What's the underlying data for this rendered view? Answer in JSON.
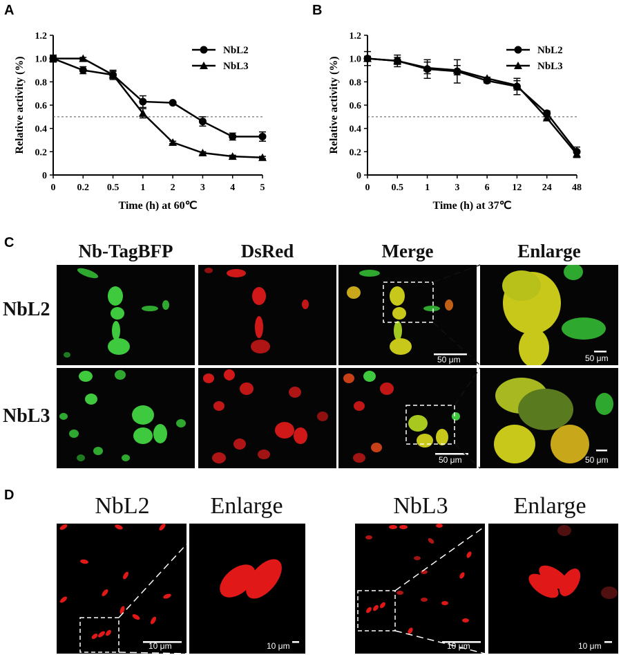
{
  "panels": {
    "a": "A",
    "b": "B",
    "c": "C",
    "d": "D"
  },
  "chart_data": [
    {
      "type": "line",
      "xlabel": "Time (h) at 60℃",
      "ylabel": "Relative activity (%)",
      "x": [
        "0",
        "0.2",
        "0.5",
        "1",
        "2",
        "3",
        "4",
        "5"
      ],
      "ylim": [
        0,
        1.2
      ],
      "yticks": [
        "0",
        "0.2",
        "0.4",
        "0.6",
        "0.8",
        "1.0",
        "1.2"
      ],
      "reference_line": 0.5,
      "legend": "top-right",
      "series": [
        {
          "name": "NbL2",
          "marker": "circle",
          "values": [
            1.0,
            0.9,
            0.86,
            0.63,
            0.62,
            0.46,
            0.33,
            0.33
          ],
          "errors": [
            0.03,
            0.03,
            0.04,
            0.05,
            0.01,
            0.04,
            0.03,
            0.04
          ]
        },
        {
          "name": "NbL3",
          "marker": "triangle",
          "values": [
            1.0,
            1.0,
            0.86,
            0.53,
            0.28,
            0.19,
            0.16,
            0.15
          ],
          "errors": [
            0.02,
            0.01,
            0.03,
            0.04,
            0.01,
            0.01,
            0.01,
            0.01
          ]
        }
      ]
    },
    {
      "type": "line",
      "xlabel": "Time (h) at 37℃",
      "ylabel": "Relative activity (%)",
      "x": [
        "0",
        "0.5",
        "1",
        "3",
        "6",
        "12",
        "24",
        "48"
      ],
      "ylim": [
        0,
        1.2
      ],
      "yticks": [
        "0",
        "0.2",
        "0.4",
        "0.6",
        "0.8",
        "1.0",
        "1.2"
      ],
      "reference_line": 0.5,
      "legend": "top-right",
      "series": [
        {
          "name": "NbL2",
          "marker": "circle",
          "values": [
            1.0,
            0.98,
            0.91,
            0.89,
            0.81,
            0.76,
            0.53,
            0.2
          ],
          "errors": [
            0.06,
            0.05,
            0.08,
            0.1,
            0.02,
            0.07,
            0.02,
            0.04
          ]
        },
        {
          "name": "NbL3",
          "marker": "triangle",
          "values": [
            1.0,
            0.98,
            0.92,
            0.9,
            0.83,
            0.77,
            0.49,
            0.18
          ],
          "errors": [
            0.02,
            0.03,
            0.05,
            0.04,
            0.01,
            0.04,
            0.01,
            0.03
          ]
        }
      ]
    }
  ],
  "panel_c": {
    "columns": [
      "Nb-TagBFP",
      "DsRed",
      "Merge",
      "Enlarge"
    ],
    "rows": [
      "NbL2",
      "NbL3"
    ],
    "scale": "50 μm"
  },
  "panel_d": {
    "titles": [
      "NbL2",
      "Enlarge",
      "NbL3",
      "Enlarge"
    ],
    "scale_main": "10 μm",
    "scale_enlarge": "10 μm"
  },
  "colors": {
    "green": "#3ec93e",
    "red": "#e01818",
    "yellow": "#c8c81a",
    "background": "#050505"
  }
}
